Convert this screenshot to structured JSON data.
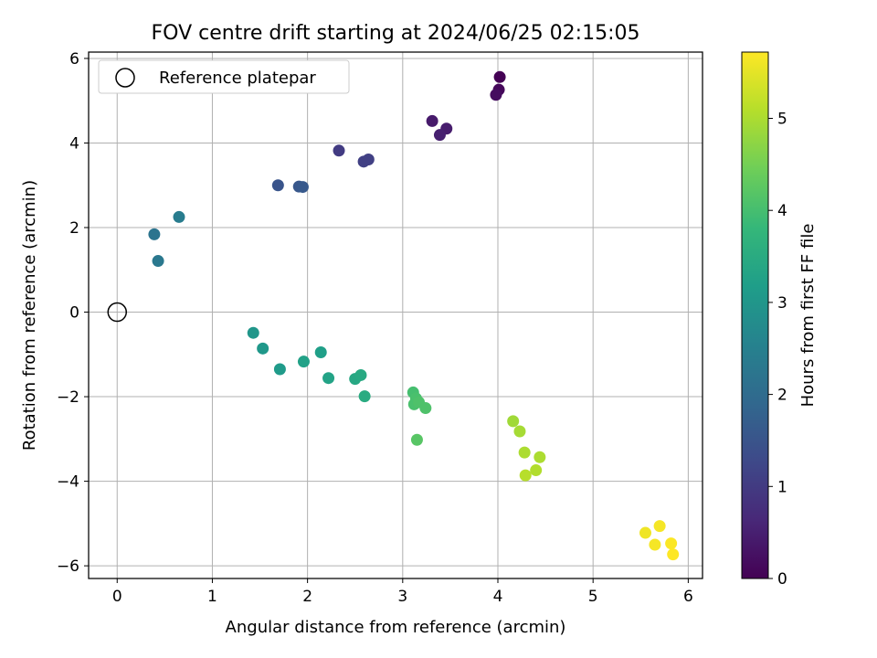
{
  "chart_data": {
    "type": "scatter",
    "title": "FOV centre drift starting at 2024/06/25 02:15:05",
    "xlabel": "Angular distance from reference (arcmin)",
    "ylabel": "Rotation from reference (arcmin)",
    "xlim": [
      -0.3,
      6.15
    ],
    "ylim": [
      -6.3,
      6.15
    ],
    "xticks": [
      0,
      1,
      2,
      3,
      4,
      5,
      6
    ],
    "yticks": [
      -6,
      -4,
      -2,
      0,
      2,
      4,
      6
    ],
    "grid": true,
    "legend": {
      "placement": "top-left",
      "entries": [
        "Reference platepar"
      ]
    },
    "reference_point": {
      "x": 0,
      "y": 0,
      "label": "Reference platepar"
    },
    "colorbar": {
      "label": "Hours from first FF file",
      "range": [
        0,
        5.72
      ],
      "ticks": [
        0,
        1,
        2,
        3,
        4,
        5
      ],
      "colormap": "viridis",
      "stops": [
        "#440154",
        "#482878",
        "#3e4989",
        "#31688e",
        "#26828e",
        "#1f9e89",
        "#35b779",
        "#6ece58",
        "#b5de2b",
        "#fde725"
      ]
    },
    "points": [
      {
        "x": 4.02,
        "y": 5.56,
        "c": 0.0
      },
      {
        "x": 4.01,
        "y": 5.26,
        "c": 0.1
      },
      {
        "x": 3.98,
        "y": 5.14,
        "c": 0.2
      },
      {
        "x": 3.31,
        "y": 4.52,
        "c": 0.4
      },
      {
        "x": 3.46,
        "y": 4.34,
        "c": 0.45
      },
      {
        "x": 3.39,
        "y": 4.19,
        "c": 0.5
      },
      {
        "x": 2.33,
        "y": 3.82,
        "c": 1.0
      },
      {
        "x": 2.64,
        "y": 3.61,
        "c": 1.1
      },
      {
        "x": 2.59,
        "y": 3.56,
        "c": 1.1
      },
      {
        "x": 1.69,
        "y": 3.0,
        "c": 1.5
      },
      {
        "x": 1.91,
        "y": 2.97,
        "c": 1.55
      },
      {
        "x": 1.95,
        "y": 2.96,
        "c": 1.6
      },
      {
        "x": 0.65,
        "y": 2.25,
        "c": 2.4
      },
      {
        "x": 0.39,
        "y": 1.84,
        "c": 2.2
      },
      {
        "x": 0.43,
        "y": 1.21,
        "c": 2.3
      },
      {
        "x": 1.43,
        "y": -0.49,
        "c": 3.0
      },
      {
        "x": 1.53,
        "y": -0.86,
        "c": 3.05
      },
      {
        "x": 1.71,
        "y": -1.35,
        "c": 3.1
      },
      {
        "x": 2.14,
        "y": -0.95,
        "c": 3.2
      },
      {
        "x": 1.96,
        "y": -1.17,
        "c": 3.25
      },
      {
        "x": 2.22,
        "y": -1.56,
        "c": 3.3
      },
      {
        "x": 2.5,
        "y": -1.58,
        "c": 3.4
      },
      {
        "x": 2.56,
        "y": -1.49,
        "c": 3.45
      },
      {
        "x": 2.6,
        "y": -1.99,
        "c": 3.5
      },
      {
        "x": 3.11,
        "y": -1.9,
        "c": 4.0
      },
      {
        "x": 3.14,
        "y": -2.04,
        "c": 4.05
      },
      {
        "x": 3.12,
        "y": -2.18,
        "c": 4.05
      },
      {
        "x": 3.17,
        "y": -2.13,
        "c": 4.1
      },
      {
        "x": 3.24,
        "y": -2.27,
        "c": 4.1
      },
      {
        "x": 3.15,
        "y": -3.02,
        "c": 4.2
      },
      {
        "x": 4.16,
        "y": -2.58,
        "c": 4.9
      },
      {
        "x": 4.23,
        "y": -2.82,
        "c": 4.95
      },
      {
        "x": 4.28,
        "y": -3.32,
        "c": 5.0
      },
      {
        "x": 4.44,
        "y": -3.43,
        "c": 5.0
      },
      {
        "x": 4.4,
        "y": -3.74,
        "c": 5.05
      },
      {
        "x": 4.29,
        "y": -3.86,
        "c": 5.1
      },
      {
        "x": 5.55,
        "y": -5.22,
        "c": 5.6
      },
      {
        "x": 5.7,
        "y": -5.06,
        "c": 5.65
      },
      {
        "x": 5.65,
        "y": -5.5,
        "c": 5.65
      },
      {
        "x": 5.82,
        "y": -5.47,
        "c": 5.7
      },
      {
        "x": 5.84,
        "y": -5.73,
        "c": 5.72
      }
    ]
  }
}
